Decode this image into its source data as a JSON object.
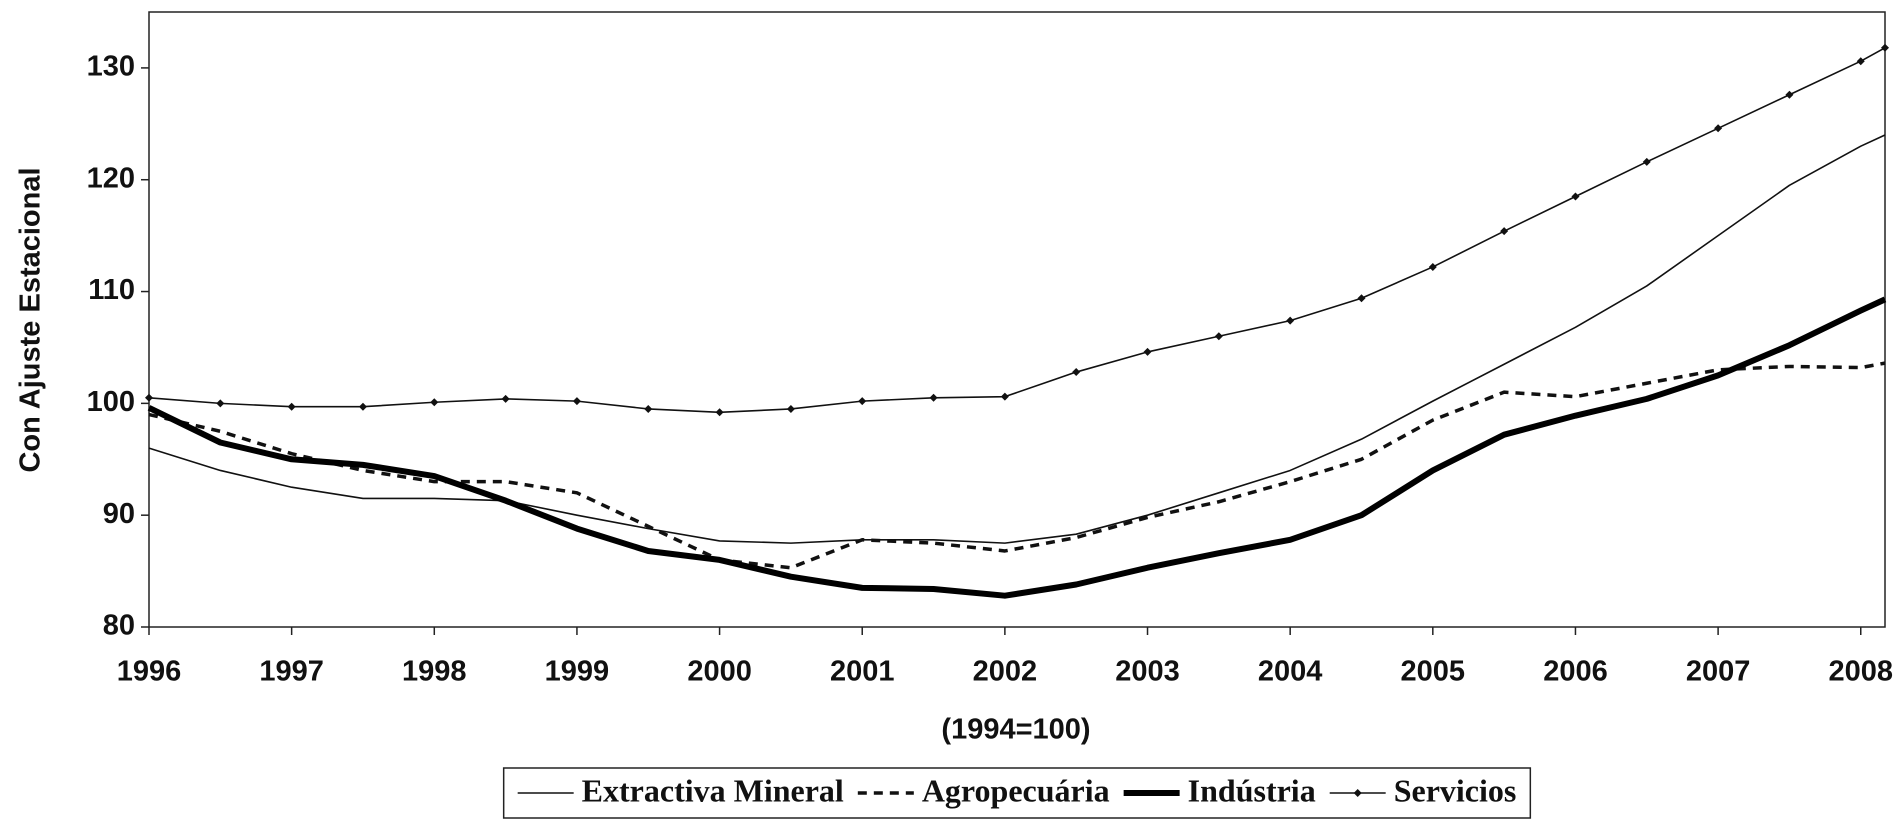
{
  "chart_data": {
    "type": "line",
    "y_label": "Con Ajuste Estacional",
    "x_label": "(1994=100)",
    "x": [
      1996,
      1996.5,
      1997,
      1997.5,
      1998,
      1998.5,
      1999,
      1999.5,
      2000,
      2000.5,
      2001,
      2001.5,
      2002,
      2002.5,
      2003,
      2003.5,
      2004,
      2004.5,
      2005,
      2005.5,
      2006,
      2006.5,
      2007,
      2007.5,
      2008,
      2008.17
    ],
    "xlim": [
      1996,
      2008.17
    ],
    "xticks": [
      1996,
      1997,
      1998,
      1999,
      2000,
      2001,
      2002,
      2003,
      2004,
      2005,
      2006,
      2007,
      2008
    ],
    "ylim": [
      80,
      135
    ],
    "yticks": [
      80,
      90,
      100,
      110,
      120,
      130
    ],
    "series": [
      {
        "name": "Extractiva Mineral",
        "color": "#111111",
        "style": "thin",
        "values": [
          96,
          94,
          92.5,
          91.5,
          91.5,
          91.3,
          90,
          88.8,
          87.7,
          87.5,
          87.8,
          87.8,
          87.5,
          88.3,
          90,
          92,
          94,
          96.8,
          100.2,
          103.5,
          106.8,
          110.5,
          115,
          119.5,
          123,
          124
        ]
      },
      {
        "name": "Agropecuária",
        "color": "#111111",
        "style": "dashed",
        "values": [
          99,
          97.5,
          95.5,
          94,
          93,
          93,
          92,
          89,
          86,
          85.3,
          87.8,
          87.5,
          86.8,
          88,
          89.8,
          91.2,
          93,
          95,
          98.5,
          101,
          100.6,
          101.8,
          103,
          103.3,
          103.2,
          103.6
        ]
      },
      {
        "name": "Indústria",
        "color": "#000000",
        "style": "thick",
        "values": [
          99.6,
          96.5,
          95,
          94.5,
          93.5,
          91.3,
          88.8,
          86.8,
          86,
          84.5,
          83.5,
          83.4,
          82.8,
          83.8,
          85.3,
          86.6,
          87.8,
          90,
          94,
          97.2,
          98.9,
          100.4,
          102.5,
          105.2,
          108.3,
          109.3
        ]
      },
      {
        "name": "Servicios",
        "color": "#111111",
        "style": "marker",
        "values": [
          100.5,
          100,
          99.7,
          99.7,
          100.1,
          100.4,
          100.2,
          99.5,
          99.2,
          99.5,
          100.2,
          100.5,
          100.6,
          102.8,
          104.6,
          106,
          107.4,
          109.4,
          112.2,
          115.4,
          118.5,
          121.6,
          124.6,
          127.6,
          130.6,
          131.8
        ]
      }
    ]
  }
}
